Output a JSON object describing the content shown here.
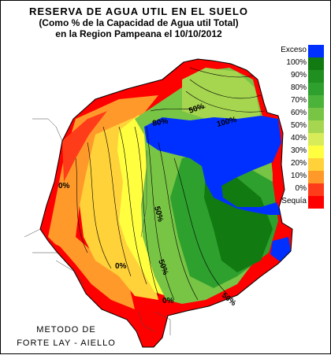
{
  "title": {
    "line1": "RESERVA DE AGUA UTIL EN EL SUELO",
    "line2": "(Como % de la Capacidad de Agua util Total)",
    "line3": "en la Region Pampeana el 10/10/2012"
  },
  "legend": [
    {
      "label": "Exceso",
      "color": "#0030ff"
    },
    {
      "label": "100%",
      "color": "#117a11"
    },
    {
      "label": "90%",
      "color": "#1f8f1f"
    },
    {
      "label": "80%",
      "color": "#2ea02e"
    },
    {
      "label": "70%",
      "color": "#4cb33a"
    },
    {
      "label": "60%",
      "color": "#78c445"
    },
    {
      "label": "50%",
      "color": "#a6d650"
    },
    {
      "label": "40%",
      "color": "#d8ec5a"
    },
    {
      "label": "30%",
      "color": "#ffff40"
    },
    {
      "label": "20%",
      "color": "#ffd23a"
    },
    {
      "label": "10%",
      "color": "#ff9a2a"
    },
    {
      "label": "0%",
      "color": "#ff3c1a"
    },
    {
      "label": "Sequía",
      "color": "#ff0000"
    }
  ],
  "contour_labels": [
    "0%",
    "0%",
    "0%",
    "50%",
    "50%",
    "50%",
    "80%",
    "100%",
    "50%"
  ],
  "method": {
    "line1": "METODO DE",
    "line2": "FORTE LAY - AIELLO"
  }
}
